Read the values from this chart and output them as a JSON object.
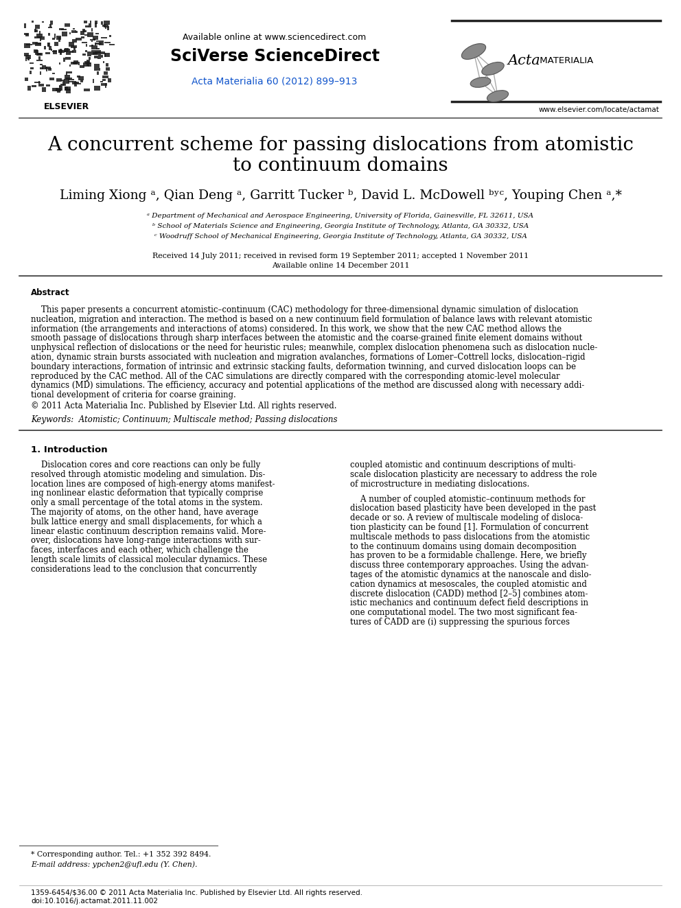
{
  "bg_color": "#ffffff",
  "title_line1": "A concurrent scheme for passing dislocations from atomistic",
  "title_line2": "to continuum domains",
  "header_available": "Available online at www.sciencedirect.com",
  "header_sciverse": "SciVerse ScienceDirect",
  "header_journal": "Acta Materialia 60 (2012) 899–913",
  "header_url": "www.elsevier.com/locate/actamat",
  "affil_a": "ᵃ Department of Mechanical and Aerospace Engineering, University of Florida, Gainesville, FL 32611, USA",
  "affil_b": "ᵇ School of Materials Science and Engineering, Georgia Institute of Technology, Atlanta, GA 30332, USA",
  "affil_c": "ᶜ Woodruff School of Mechanical Engineering, Georgia Institute of Technology, Atlanta, GA 30332, USA",
  "received": "Received 14 July 2011; received in revised form 19 September 2011; accepted 1 November 2011",
  "available_online": "Available online 14 December 2011",
  "abstract_lines": [
    "    This paper presents a concurrent atomistic–continuum (CAC) methodology for three-dimensional dynamic simulation of dislocation",
    "nucleation, migration and interaction. The method is based on a new continuum field formulation of balance laws with relevant atomistic",
    "information (the arrangements and interactions of atoms) considered. In this work, we show that the new CAC method allows the",
    "smooth passage of dislocations through sharp interfaces between the atomistic and the coarse-grained finite element domains without",
    "unphysical reflection of dislocations or the need for heuristic rules; meanwhile, complex dislocation phenomena such as dislocation nucle-",
    "ation, dynamic strain bursts associated with nucleation and migration avalanches, formations of Lomer–Cottrell locks, dislocation–rigid",
    "boundary interactions, formation of intrinsic and extrinsic stacking faults, deformation twinning, and curved dislocation loops can be",
    "reproduced by the CAC method. All of the CAC simulations are directly compared with the corresponding atomic-level molecular",
    "dynamics (MD) simulations. The efficiency, accuracy and potential applications of the method are discussed along with necessary addi-",
    "tional development of criteria for coarse graining."
  ],
  "copyright_line": "© 2011 Acta Materialia Inc. Published by Elsevier Ltd. All rights reserved.",
  "keywords_line": "Keywords:  Atomistic; Continuum; Multiscale method; Passing dislocations",
  "intro_col1": [
    "    Dislocation cores and core reactions can only be fully",
    "resolved through atomistic modeling and simulation. Dis-",
    "location lines are composed of high-energy atoms manifest-",
    "ing nonlinear elastic deformation that typically comprise",
    "only a small percentage of the total atoms in the system.",
    "The majority of atoms, on the other hand, have average",
    "bulk lattice energy and small displacements, for which a",
    "linear elastic continuum description remains valid. More-",
    "over, dislocations have long-range interactions with sur-",
    "faces, interfaces and each other, which challenge the",
    "length scale limits of classical molecular dynamics. These",
    "considerations lead to the conclusion that concurrently"
  ],
  "intro_col2_p1": [
    "coupled atomistic and continuum descriptions of multi-",
    "scale dislocation plasticity are necessary to address the role",
    "of microstructure in mediating dislocations."
  ],
  "intro_col2_p2": [
    "    A number of coupled atomistic–continuum methods for",
    "dislocation based plasticity have been developed in the past",
    "decade or so. A review of multiscale modeling of disloca-",
    "tion plasticity can be found [1]. Formulation of concurrent",
    "multiscale methods to pass dislocations from the atomistic",
    "to the continuum domains using domain decomposition",
    "has proven to be a formidable challenge. Here, we briefly",
    "discuss three contemporary approaches. Using the advan-",
    "tages of the atomistic dynamics at the nanoscale and dislo-",
    "cation dynamics at mesoscales, the coupled atomistic and",
    "discrete dislocation (CADD) method [2–5] combines atom-",
    "istic mechanics and continuum defect field descriptions in",
    "one computational model. The two most significant fea-",
    "tures of CADD are (i) suppressing the spurious forces"
  ],
  "footnote1": "* Corresponding author. Tel.: +1 352 392 8494.",
  "footnote2": "E-mail address: ypchen2@ufl.edu (Y. Chen).",
  "footer1": "1359-6454/$36.00 © 2011 Acta Materialia Inc. Published by Elsevier Ltd. All rights reserved.",
  "footer2": "doi:10.1016/j.actamat.2011.11.002",
  "link_color": "#1155cc"
}
